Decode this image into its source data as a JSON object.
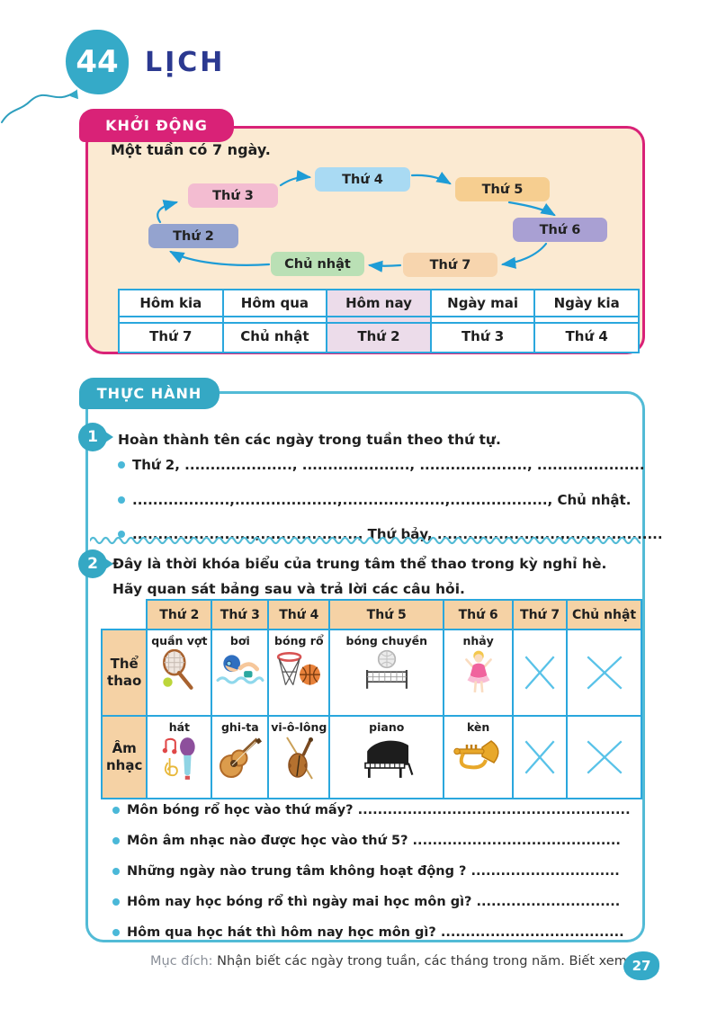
{
  "page": {
    "lesson_number": "44",
    "title": "LỊCH",
    "page_number": "27",
    "footer": {
      "label": "Mục đích:",
      "text": "Nhận biết các ngày trong tuần, các tháng trong năm. Biết xem lịch."
    }
  },
  "colors": {
    "teal_primary": "#35aac8",
    "magenta": "#d92277",
    "navy_title": "#2b3990",
    "cream_panel": "#fbead2",
    "table_border": "#2aa7dd",
    "practice_border": "#52bbd6",
    "arrow": "#1e9cd6",
    "peach_cell": "#f5d2a5",
    "highlight_cell": "#ecdcea",
    "x_mark": "#58c2e8"
  },
  "warmup": {
    "badge": "KHỞI ĐỘNG",
    "intro": "Một tuần có 7 ngày.",
    "cycle": {
      "days": [
        {
          "label": "Thứ 2",
          "color": "#94a3cf"
        },
        {
          "label": "Thứ 3",
          "color": "#f3bcd1"
        },
        {
          "label": "Thứ 4",
          "color": "#a9daf3"
        },
        {
          "label": "Thứ 5",
          "color": "#f6ce90"
        },
        {
          "label": "Thứ 6",
          "color": "#a9a0d3"
        },
        {
          "label": "Thứ 7",
          "color": "#f7d5ae"
        },
        {
          "label": "Chủ nhật",
          "color": "#bae0b5"
        }
      ]
    },
    "table": {
      "headers": [
        "Hôm kia",
        "Hôm qua",
        "Hôm nay",
        "Ngày mai",
        "Ngày kia"
      ],
      "values": [
        "Thứ 7",
        "Chủ nhật",
        "Thứ 2",
        "Thứ 3",
        "Thứ 4"
      ],
      "highlighted_header": "Hôm nay"
    }
  },
  "practice": {
    "badge": "THỰC HÀNH",
    "ex1": {
      "number": "1",
      "prompt": "Hoàn thành tên các ngày trong tuần theo thứ tự.",
      "lines": [
        "Thứ 2, ....................., ....................., ....................., .....................",
        "...................,....................,....................,..................., Chủ nhật.",
        "........................,..................., Thứ bảy, ........................,..................."
      ]
    },
    "ex2": {
      "number": "2",
      "prompt_line1": "Đây là thời khóa biểu của trung tâm thể thao trong kỳ nghỉ hè.",
      "prompt_line2": "Hãy quan sát bảng sau và trả lời các câu hỏi.",
      "timetable": {
        "day_headers": [
          "Thứ 2",
          "Thứ 3",
          "Thứ 4",
          "Thứ 5",
          "Thứ 6",
          "Thứ 7",
          "Chủ nhật"
        ],
        "rows": [
          {
            "label": "Thể thao",
            "cells": [
              {
                "text": "quần vợt",
                "icon": "tennis-racket-icon"
              },
              {
                "text": "bơi",
                "icon": "swimmer-icon"
              },
              {
                "text": "bóng rổ",
                "icon": "basketball-hoop-icon"
              },
              {
                "text": "bóng chuyền",
                "icon": "volleyball-net-icon"
              },
              {
                "text": "nhảy",
                "icon": "ballet-dancer-icon"
              },
              {
                "text": "",
                "icon": "x-mark-icon"
              },
              {
                "text": "",
                "icon": "x-mark-icon"
              }
            ]
          },
          {
            "label": "Âm nhạc",
            "cells": [
              {
                "text": "hát",
                "icon": "microphone-notes-icon"
              },
              {
                "text": "ghi-ta",
                "icon": "guitar-icon"
              },
              {
                "text": "vi-ô-lông",
                "icon": "violin-icon"
              },
              {
                "text": "piano",
                "icon": "piano-icon"
              },
              {
                "text": "kèn",
                "icon": "trumpet-icon"
              },
              {
                "text": "",
                "icon": "x-mark-icon"
              },
              {
                "text": "",
                "icon": "x-mark-icon"
              }
            ]
          }
        ]
      },
      "questions": [
        "Môn bóng rổ học vào thứ mấy? .......................................................",
        "Môn âm nhạc nào được học vào thứ 5? ..........................................",
        "Những ngày nào trung tâm không hoạt động ? ..............................",
        "Hôm nay học bóng rổ thì ngày mai học môn gì? .............................",
        "Hôm qua học hát thì hôm nay học môn gì? ....................................."
      ]
    }
  }
}
